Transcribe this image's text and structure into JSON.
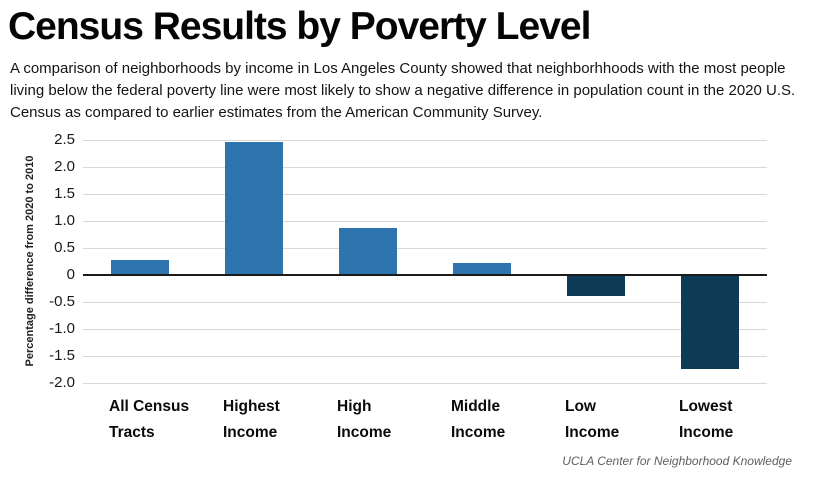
{
  "header": {
    "title": "Census Results by Poverty Level",
    "subtitle": "A comparison of neighborhoods by income in Los Angeles County showed that neighborhhoods with the most people living below the federal poverty line were most likely to show a negative difference in population count in the 2020 U.S. Census as compared to earlier estimates from the American Community Survey."
  },
  "chart_data": {
    "type": "bar",
    "title": "Census Results by Poverty Level",
    "categories": [
      "All Census Tracts",
      "Highest Income",
      "High Income",
      "Middle Income",
      "Low Income",
      "Lowest Income"
    ],
    "values": [
      0.25,
      2.45,
      0.85,
      0.2,
      -0.4,
      -1.75
    ],
    "ylabel": "Percentage difference from 2020 to 2010",
    "xlabel": "",
    "ylim": [
      -2.0,
      2.5
    ],
    "ytick_labels": [
      "2.5",
      "2.0",
      "1.5",
      "1.0",
      "0.5",
      "0",
      "-0.5",
      "-1.0",
      "-1.5",
      "-2.0"
    ],
    "grid": true,
    "legend": false,
    "colors": {
      "positive_bar": "#2d73ad",
      "negative_bar": "#0d3a55",
      "gridline": "#d8d8d8",
      "zero_line": "#1a1a1a"
    }
  },
  "footer": {
    "credit": "UCLA Center for Neighborhood Knowledge"
  }
}
